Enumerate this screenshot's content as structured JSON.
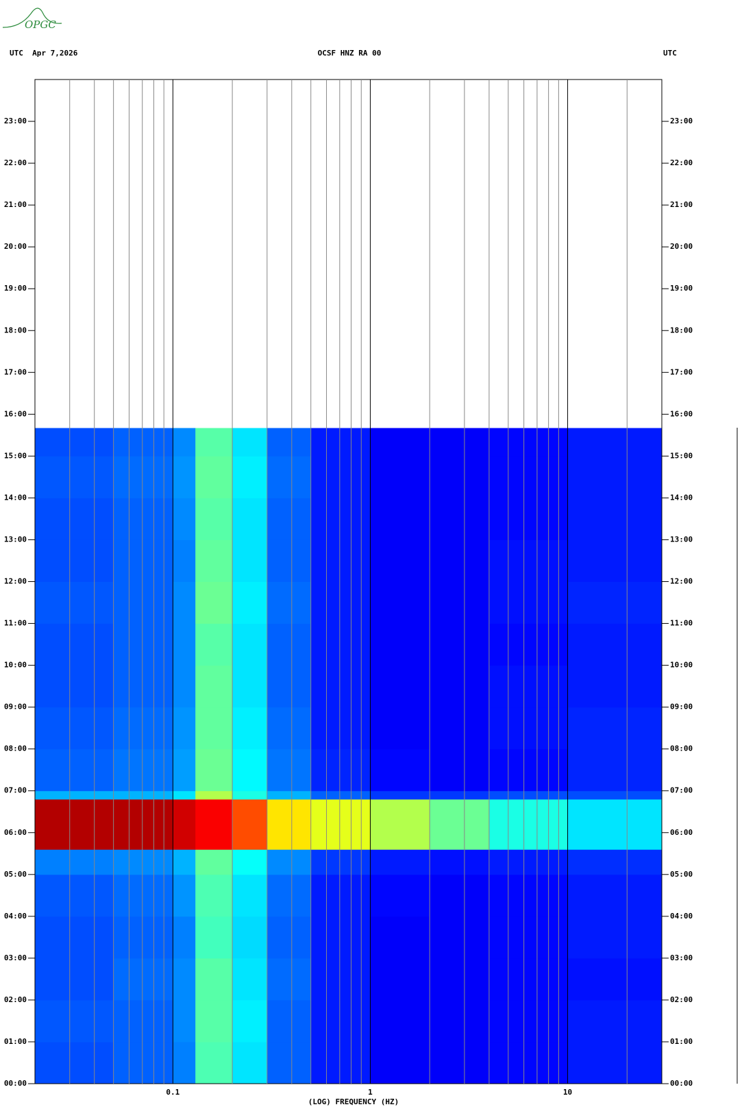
{
  "logo": "OPGC",
  "header": {
    "left": "UTC  Apr 7,2026",
    "center": "OCSF HNZ RA 00",
    "right": "UTC"
  },
  "chart_data": {
    "type": "spectrogram",
    "xlabel": "(LOG) FREQUENCY (HZ)",
    "xscale": "log",
    "xlim": [
      0.02,
      30
    ],
    "xticks": [
      0.1,
      1,
      10
    ],
    "xminorticks": [
      0.03,
      0.04,
      0.05,
      0.06,
      0.07,
      0.08,
      0.09,
      0.2,
      0.3,
      0.4,
      0.5,
      0.6,
      0.7,
      0.8,
      0.9,
      2,
      3,
      4,
      5,
      6,
      7,
      8,
      9,
      20
    ],
    "ylim": [
      0,
      24
    ],
    "yticks": [
      {
        "value": 0,
        "label": "00:00"
      },
      {
        "value": 1,
        "label": "01:00"
      },
      {
        "value": 2,
        "label": "02:00"
      },
      {
        "value": 3,
        "label": "03:00"
      },
      {
        "value": 4,
        "label": "04:00"
      },
      {
        "value": 5,
        "label": "05:00"
      },
      {
        "value": 6,
        "label": "06:00"
      },
      {
        "value": 7,
        "label": "07:00"
      },
      {
        "value": 8,
        "label": "08:00"
      },
      {
        "value": 9,
        "label": "09:00"
      },
      {
        "value": 10,
        "label": "10:00"
      },
      {
        "value": 11,
        "label": "11:00"
      },
      {
        "value": 12,
        "label": "12:00"
      },
      {
        "value": 13,
        "label": "13:00"
      },
      {
        "value": 14,
        "label": "14:00"
      },
      {
        "value": 15,
        "label": "15:00"
      },
      {
        "value": 16,
        "label": "16:00"
      },
      {
        "value": 17,
        "label": "17:00"
      },
      {
        "value": 18,
        "label": "18:00"
      },
      {
        "value": 19,
        "label": "19:00"
      },
      {
        "value": 20,
        "label": "20:00"
      },
      {
        "value": 21,
        "label": "21:00"
      },
      {
        "value": 22,
        "label": "22:00"
      },
      {
        "value": 23,
        "label": "23:00"
      }
    ],
    "time_edges": [
      0,
      1,
      2,
      3,
      4,
      5,
      5.6,
      6.8,
      7,
      8,
      9,
      10,
      11,
      12,
      13,
      14,
      15,
      15.67
    ],
    "freq_edges": [
      0.02,
      0.05,
      0.1,
      0.13,
      0.2,
      0.3,
      0.5,
      1,
      2,
      4,
      10,
      30
    ],
    "z": [
      [
        20,
        22,
        25,
        45,
        35,
        22,
        15,
        12,
        12,
        13,
        15
      ],
      [
        21,
        22,
        26,
        46,
        36,
        22,
        15,
        12,
        12,
        13,
        15
      ],
      [
        20,
        23,
        26,
        46,
        35,
        23,
        15,
        12,
        12,
        13,
        14
      ],
      [
        20,
        22,
        25,
        44,
        34,
        22,
        15,
        12,
        12,
        13,
        15
      ],
      [
        21,
        23,
        27,
        45,
        35,
        23,
        15,
        13,
        12,
        13,
        15
      ],
      [
        25,
        26,
        30,
        47,
        38,
        26,
        18,
        15,
        14,
        15,
        17
      ],
      [
        95,
        95,
        92,
        88,
        80,
        65,
        60,
        55,
        48,
        40,
        35
      ],
      [
        30,
        30,
        35,
        55,
        40,
        30,
        22,
        18,
        18,
        20,
        20
      ],
      [
        22,
        24,
        28,
        48,
        37,
        24,
        16,
        13,
        12,
        13,
        16
      ],
      [
        21,
        23,
        27,
        47,
        36,
        23,
        15,
        12,
        12,
        14,
        16
      ],
      [
        20,
        22,
        26,
        47,
        35,
        22,
        15,
        12,
        12,
        14,
        15
      ],
      [
        20,
        22,
        26,
        46,
        35,
        22,
        15,
        12,
        12,
        13,
        15
      ],
      [
        21,
        22,
        26,
        48,
        36,
        23,
        15,
        12,
        12,
        14,
        16
      ],
      [
        20,
        22,
        25,
        47,
        35,
        22,
        15,
        12,
        12,
        14,
        15
      ],
      [
        20,
        22,
        26,
        46,
        35,
        22,
        15,
        12,
        12,
        13,
        15
      ],
      [
        21,
        23,
        27,
        47,
        36,
        23,
        15,
        12,
        12,
        13,
        15
      ],
      [
        20,
        22,
        26,
        46,
        35,
        22,
        15,
        12,
        12,
        13,
        15
      ]
    ],
    "zlim": [
      0,
      100
    ],
    "colormap": "jet"
  }
}
